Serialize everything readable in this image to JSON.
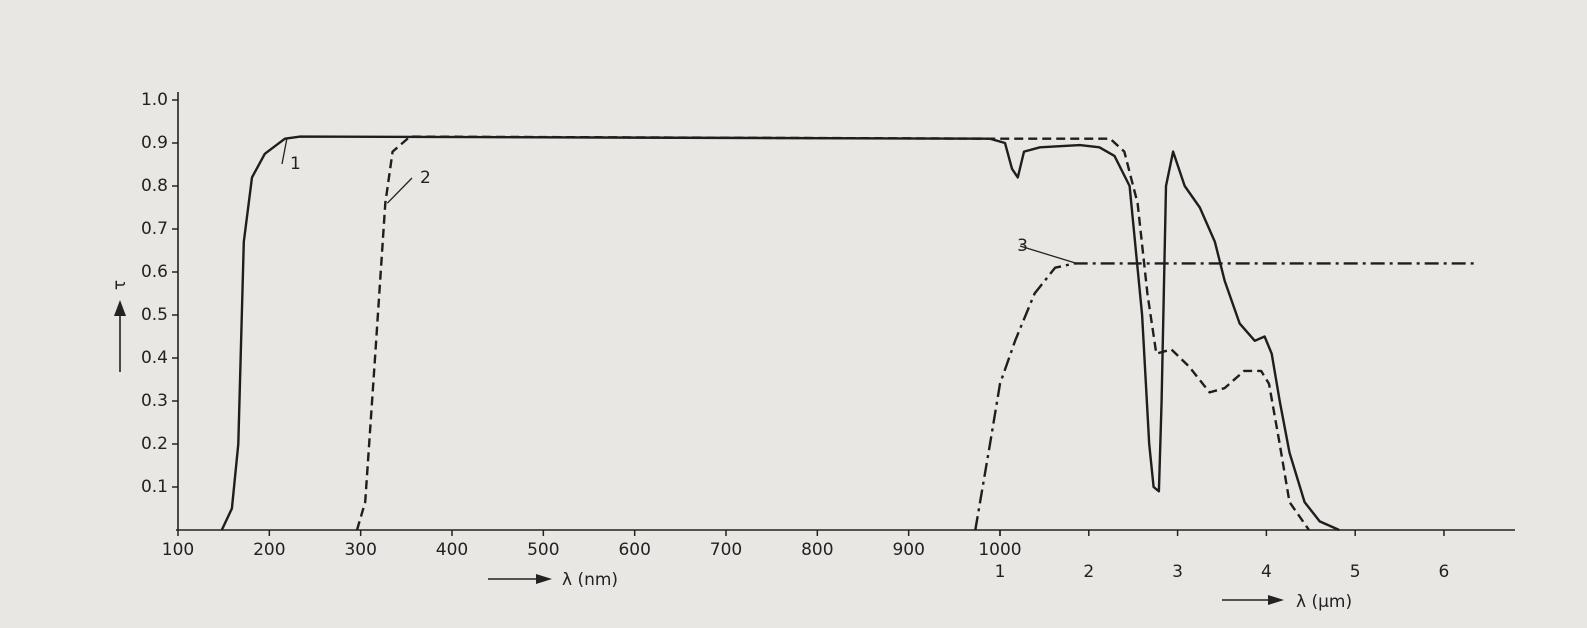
{
  "chart_data": {
    "type": "line",
    "y_label": "τ",
    "x_label": "λ (nm)",
    "x2_label": "λ (µm)",
    "xlim": [
      0.1,
      6.8
    ],
    "xticks": [
      {
        "value": 0.1,
        "label": "100"
      },
      {
        "value": 0.2,
        "label": "200"
      },
      {
        "value": 0.3,
        "label": "300"
      },
      {
        "value": 0.4,
        "label": "400"
      },
      {
        "value": 0.5,
        "label": "500"
      },
      {
        "value": 0.6,
        "label": "600"
      },
      {
        "value": 0.7,
        "label": "700"
      },
      {
        "value": 0.8,
        "label": "800"
      },
      {
        "value": 0.9,
        "label": "900"
      },
      {
        "value": 1,
        "label": "1000"
      }
    ],
    "x2ticks": [
      1,
      2,
      3,
      4,
      5,
      6
    ],
    "ylim": [
      0,
      1
    ],
    "yticks": [
      0.1,
      0.2,
      0.3,
      0.4,
      0.5,
      0.6,
      0.7,
      0.8,
      0.9,
      {
        "value": 1,
        "label": "1.0"
      }
    ],
    "series": [
      {
        "name": "1",
        "color": "#1e1e1e",
        "dash": "solid",
        "x": [
          0.148,
          0.159,
          0.166,
          0.172,
          0.181,
          0.195,
          0.217,
          0.234,
          0.989,
          1.056,
          1.135,
          1.2,
          1.27,
          1.45,
          1.9,
          2.12,
          2.29,
          2.46,
          2.6,
          2.68,
          2.73,
          2.79,
          2.82,
          2.87,
          2.95,
          3.08,
          3.25,
          3.42,
          3.53,
          3.7,
          3.87,
          3.98,
          4.06,
          4.15,
          4.26,
          4.43,
          4.6,
          4.82
        ],
        "values": [
          0,
          0.05,
          0.2,
          0.67,
          0.82,
          0.875,
          0.91,
          0.915,
          0.91,
          0.9,
          0.84,
          0.82,
          0.88,
          0.89,
          0.895,
          0.89,
          0.87,
          0.8,
          0.5,
          0.2,
          0.1,
          0.09,
          0.3,
          0.8,
          0.88,
          0.8,
          0.75,
          0.67,
          0.58,
          0.48,
          0.44,
          0.45,
          0.41,
          0.3,
          0.18,
          0.065,
          0.02,
          0
        ]
      },
      {
        "name": "2",
        "color": "#1e1e1e",
        "dash": "dashed",
        "x": [
          0.296,
          0.305,
          0.316,
          0.327,
          0.335,
          0.354,
          1,
          2.24,
          2.4,
          2.55,
          2.66,
          2.76,
          2.93,
          3.13,
          3.36,
          3.53,
          3.75,
          3.94,
          4.03,
          4.15,
          4.26,
          4.48
        ],
        "values": [
          0,
          0.065,
          0.41,
          0.76,
          0.88,
          0.915,
          0.91,
          0.91,
          0.88,
          0.76,
          0.55,
          0.41,
          0.42,
          0.38,
          0.32,
          0.33,
          0.37,
          0.37,
          0.34,
          0.2,
          0.065,
          0
        ]
      },
      {
        "name": "3",
        "color": "#1e1e1e",
        "dash": "dashdot",
        "x": [
          0.973,
          0.989,
          1,
          1.17,
          1.39,
          1.62,
          1.84,
          6.39
        ],
        "values": [
          0,
          0.2,
          0.34,
          0.44,
          0.55,
          0.61,
          0.62,
          0.62
        ]
      }
    ]
  }
}
